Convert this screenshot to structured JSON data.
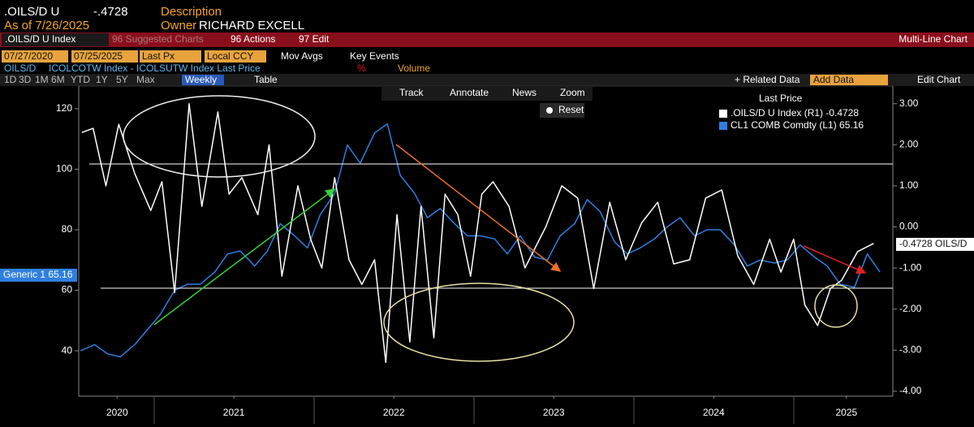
{
  "ui": {
    "ticker": ".OILS/D U",
    "last": "-.4728",
    "description": "Description",
    "as_of": "As of 7/26/2025",
    "owner_label": "Owner",
    "owner": "RICHARD EXCELL",
    "security": ".OILS/D U Index",
    "suggested": "96 Suggested Charts",
    "actions": "96 Actions",
    "edit": "97 Edit",
    "chart_kind": "Multi-Line Chart",
    "start_date": "07/27/2020",
    "end_date": "07/25/2025",
    "field": "Last Px",
    "currency": "Local CCY",
    "mov_avgs": "Mov Avgs",
    "key_events": "Key Events",
    "axis_name": "OILS/D",
    "study": "ICOLCOTW Index - ICOLSUTW Index Last Price",
    "percent": "%",
    "volume": "Volume",
    "periods": [
      "1D",
      "3D",
      "1M",
      "6M",
      "YTD",
      "1Y",
      "5Y",
      "Max"
    ],
    "frequency": "Weekly",
    "table": "Table",
    "related": "+ Related Data",
    "add_data": "Add Data",
    "edit_chart": "Edit Chart",
    "tools": [
      "Track",
      "Annotate",
      "News",
      "Zoom"
    ],
    "reset": "Reset",
    "legend_title": "Last Price",
    "legend_entries": [
      ".OILS/D U Index (R1)  -0.4728",
      "CL1 COMB Comdty  (L1) 65.16"
    ],
    "right_tag": "-0.4728 OILS/D",
    "left_tag": "Generic 1 65.16"
  },
  "chart_data": {
    "type": "line",
    "grid": false,
    "xlim": [
      2020.53,
      2025.62
    ],
    "xticks": [
      {
        "value": 2020.77,
        "label": "2020"
      },
      {
        "value": 2021.5,
        "label": "2021"
      },
      {
        "value": 2022.5,
        "label": "2022"
      },
      {
        "value": 2023.5,
        "label": "2023"
      },
      {
        "value": 2024.5,
        "label": "2024"
      },
      {
        "value": 2025.33,
        "label": "2025"
      }
    ],
    "ylim": [
      25,
      127.5
    ],
    "yticks": [
      40,
      60,
      80,
      100,
      120
    ],
    "y2lim": [
      -4.12,
      3.43
    ],
    "y2ticks": [
      {
        "value": 3,
        "label": "3.00"
      },
      {
        "value": 2,
        "label": "2.00"
      },
      {
        "value": 1,
        "label": "1.00"
      },
      {
        "value": 0,
        "label": "0.00"
      },
      {
        "value": -1,
        "label": "-1.00"
      },
      {
        "value": -2,
        "label": "-2.00"
      },
      {
        "value": -3,
        "label": "-3.00"
      },
      {
        "value": -4,
        "label": "-4.00"
      }
    ],
    "series": [
      {
        "name": "CL1 COMB Comdty",
        "color": "#2f7fe0",
        "axis": "y",
        "x": [
          2020.54,
          2020.63,
          2020.71,
          2020.79,
          2020.88,
          2020.96,
          2021.04,
          2021.13,
          2021.21,
          2021.29,
          2021.38,
          2021.46,
          2021.54,
          2021.63,
          2021.71,
          2021.79,
          2021.88,
          2021.96,
          2022.04,
          2022.13,
          2022.21,
          2022.29,
          2022.38,
          2022.46,
          2022.54,
          2022.63,
          2022.71,
          2022.79,
          2022.88,
          2022.96,
          2023.04,
          2023.13,
          2023.21,
          2023.29,
          2023.38,
          2023.46,
          2023.54,
          2023.63,
          2023.71,
          2023.79,
          2023.88,
          2023.96,
          2024.04,
          2024.13,
          2024.21,
          2024.29,
          2024.38,
          2024.46,
          2024.54,
          2024.63,
          2024.71,
          2024.79,
          2024.88,
          2024.96,
          2025.04,
          2025.13,
          2025.21,
          2025.29,
          2025.38,
          2025.46,
          2025.54
        ],
        "values": [
          40,
          42,
          39,
          38,
          42,
          47,
          52,
          60,
          62,
          62,
          66,
          72,
          73,
          68,
          73,
          82,
          78,
          74,
          85,
          92,
          108,
          102,
          112,
          115,
          98,
          92,
          84,
          87,
          82,
          78,
          78,
          77,
          72,
          78,
          71,
          70,
          78,
          82,
          90,
          86,
          76,
          72,
          74,
          77,
          81,
          84,
          78,
          80,
          80,
          75,
          68,
          70,
          69,
          70,
          75,
          71,
          68,
          62,
          61,
          72,
          66
        ]
      },
      {
        "name": ".OILS/D U Index",
        "color": "#ffffff",
        "axis": "y2",
        "x": [
          2020.55,
          2020.62,
          2020.7,
          2020.78,
          2020.88,
          2020.98,
          2021.05,
          2021.13,
          2021.22,
          2021.3,
          2021.4,
          2021.47,
          2021.55,
          2021.65,
          2021.72,
          2021.8,
          2021.9,
          2021.98,
          2022.05,
          2022.13,
          2022.22,
          2022.3,
          2022.38,
          2022.45,
          2022.52,
          2022.6,
          2022.67,
          2022.75,
          2022.82,
          2022.9,
          2022.98,
          2023.05,
          2023.12,
          2023.22,
          2023.32,
          2023.45,
          2023.55,
          2023.65,
          2023.75,
          2023.85,
          2023.95,
          2024.05,
          2024.15,
          2024.25,
          2024.35,
          2024.45,
          2024.55,
          2024.65,
          2024.75,
          2024.85,
          2024.92,
          2025.0,
          2025.07,
          2025.15,
          2025.23,
          2025.3,
          2025.4,
          2025.5
        ],
        "values": [
          2.3,
          2.4,
          1.0,
          2.5,
          1.3,
          0.4,
          1.1,
          -1.6,
          3.0,
          0.5,
          2.8,
          0.8,
          1.2,
          0.3,
          2.0,
          -1.2,
          1.0,
          -0.3,
          -1.0,
          1.2,
          -0.8,
          -1.4,
          -0.8,
          -3.3,
          0.3,
          -2.8,
          0.5,
          -2.7,
          0.8,
          0.3,
          -1.2,
          0.8,
          1.1,
          0.5,
          -1.0,
          0.0,
          1.0,
          0.7,
          -1.5,
          0.6,
          -0.8,
          0.1,
          0.6,
          -0.9,
          -0.8,
          0.7,
          0.9,
          -0.7,
          -1.4,
          -0.3,
          -1.1,
          -0.3,
          -1.9,
          -2.4,
          -1.5,
          -1.3,
          -0.6,
          -0.4
        ]
      }
    ]
  }
}
